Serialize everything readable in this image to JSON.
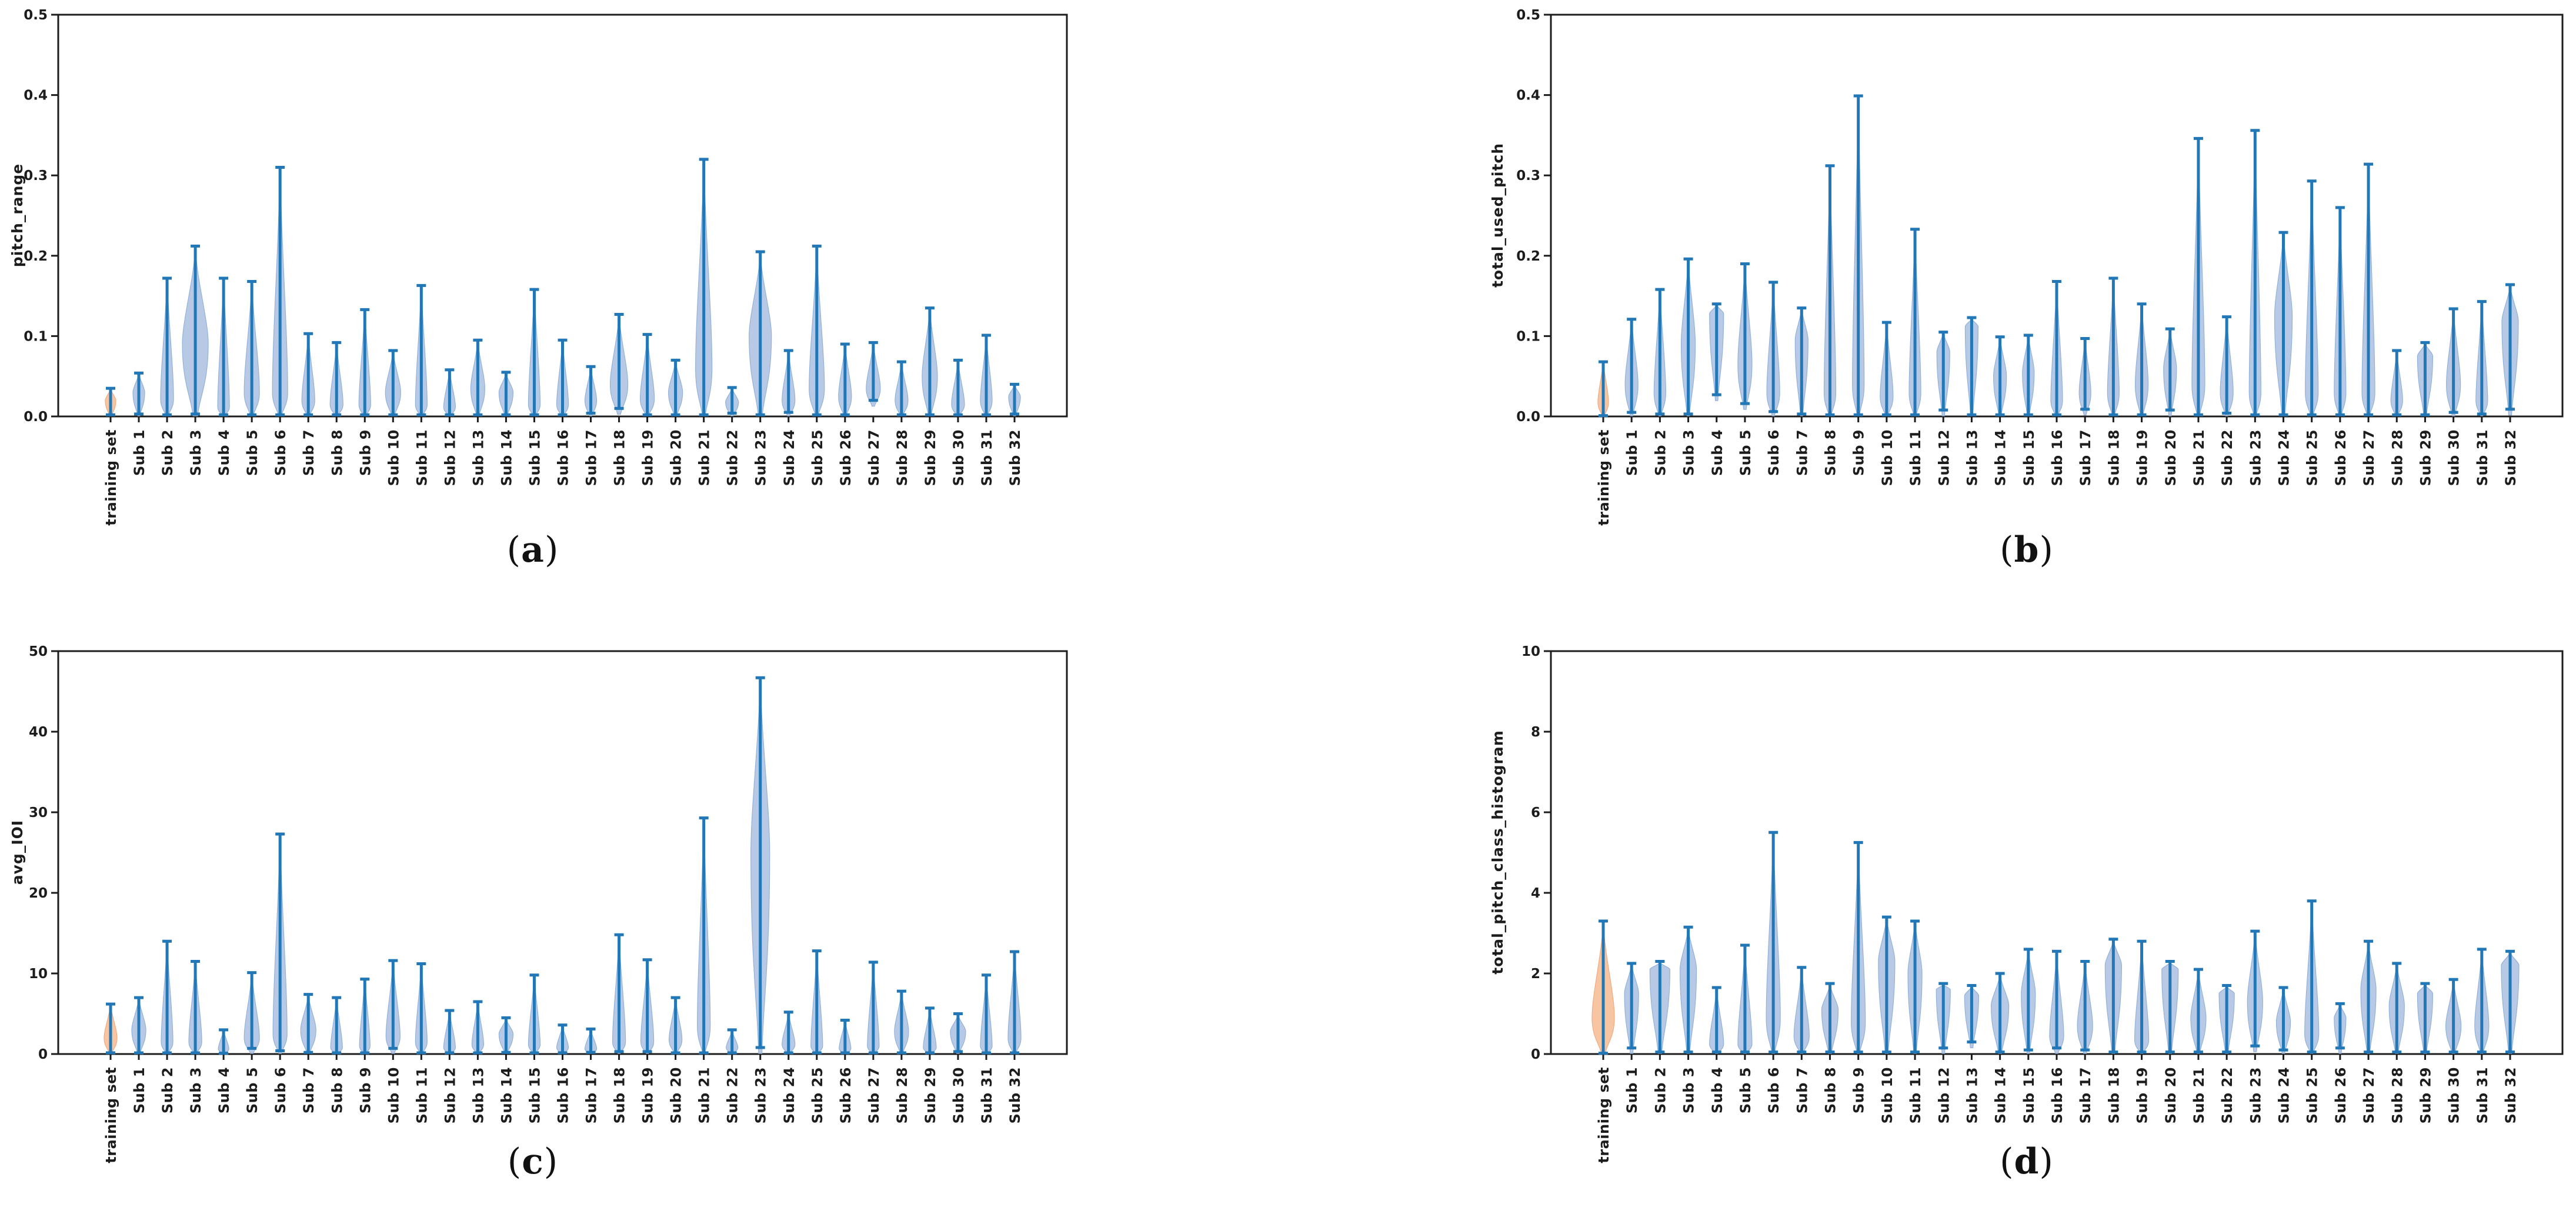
{
  "figure": {
    "background": "#ffffff",
    "captions": {
      "prefix": "(",
      "suffix": ")"
    }
  },
  "colors": {
    "whisker_blue": "#2277b6",
    "violin_blue_fill": "#b7c9e5",
    "violin_blue_edge": "#93b2d9",
    "violin_orange_fill": "#f8c5a3",
    "violin_orange_edge": "#efab81",
    "axis": "#1c1c1c",
    "text": "#1c1c1c"
  },
  "categories": [
    "training set",
    "Sub 1",
    "Sub 2",
    "Sub 3",
    "Sub 4",
    "Sub 5",
    "Sub 6",
    "Sub 7",
    "Sub 8",
    "Sub 9",
    "Sub 10",
    "Sub 11",
    "Sub 12",
    "Sub 13",
    "Sub 14",
    "Sub 15",
    "Sub 16",
    "Sub 17",
    "Sub 18",
    "Sub 19",
    "Sub 20",
    "Sub 21",
    "Sub 22",
    "Sub 23",
    "Sub 24",
    "Sub 25",
    "Sub 26",
    "Sub 27",
    "Sub 28",
    "Sub 29",
    "Sub 30",
    "Sub 31",
    "Sub 32"
  ],
  "highlight_category": "training set",
  "violin_fields": [
    "max",
    "min",
    "mode",
    "halfwidth_px"
  ],
  "chart_data": [
    {
      "panel": "a",
      "type": "violin",
      "caption": "(a)",
      "caption_letter": "a",
      "ylabel": "pitch_range",
      "xlabel": "",
      "ylim": [
        0,
        0.5
      ],
      "ytick_labels": [
        "0.0",
        "0.1",
        "0.2",
        "0.3",
        "0.4",
        "0.5"
      ],
      "grid": false,
      "legend": "none",
      "violins": [
        [
          0.035,
          0.002,
          0.02,
          9
        ],
        [
          0.054,
          0.003,
          0.03,
          10
        ],
        [
          0.172,
          0.002,
          0.022,
          11
        ],
        [
          0.212,
          0.003,
          0.09,
          22
        ],
        [
          0.172,
          0.002,
          0.012,
          10
        ],
        [
          0.168,
          0.002,
          0.03,
          13
        ],
        [
          0.31,
          0.002,
          0.03,
          13
        ],
        [
          0.103,
          0.002,
          0.02,
          11
        ],
        [
          0.092,
          0.002,
          0.015,
          11
        ],
        [
          0.133,
          0.002,
          0.015,
          10
        ],
        [
          0.082,
          0.002,
          0.03,
          13
        ],
        [
          0.163,
          0.002,
          0.015,
          10
        ],
        [
          0.058,
          0.002,
          0.012,
          10
        ],
        [
          0.095,
          0.002,
          0.035,
          12
        ],
        [
          0.055,
          0.002,
          0.03,
          12
        ],
        [
          0.158,
          0.002,
          0.015,
          10
        ],
        [
          0.095,
          0.002,
          0.015,
          10
        ],
        [
          0.062,
          0.004,
          0.02,
          10
        ],
        [
          0.127,
          0.01,
          0.04,
          15
        ],
        [
          0.102,
          0.002,
          0.022,
          12
        ],
        [
          0.07,
          0.002,
          0.03,
          12
        ],
        [
          0.32,
          0.002,
          0.06,
          14
        ],
        [
          0.036,
          0.004,
          0.018,
          11
        ],
        [
          0.205,
          0.002,
          0.1,
          19
        ],
        [
          0.082,
          0.005,
          0.02,
          11
        ],
        [
          0.212,
          0.002,
          0.035,
          13
        ],
        [
          0.09,
          0.002,
          0.025,
          11
        ],
        [
          0.092,
          0.02,
          0.035,
          12
        ],
        [
          0.068,
          0.002,
          0.02,
          11
        ],
        [
          0.135,
          0.002,
          0.05,
          13
        ],
        [
          0.07,
          0.002,
          0.015,
          11
        ],
        [
          0.101,
          0.002,
          0.02,
          10
        ],
        [
          0.04,
          0.003,
          0.025,
          10
        ]
      ]
    },
    {
      "panel": "b",
      "type": "violin",
      "caption": "(b)",
      "caption_letter": "b",
      "ylabel": "total_used_pitch",
      "xlabel": "",
      "ylim": [
        0,
        0.5
      ],
      "ytick_labels": [
        "0.0",
        "0.1",
        "0.2",
        "0.3",
        "0.4",
        "0.5"
      ],
      "grid": false,
      "legend": "none",
      "violins": [
        [
          0.068,
          0.001,
          0.018,
          9
        ],
        [
          0.121,
          0.005,
          0.04,
          11
        ],
        [
          0.158,
          0.003,
          0.03,
          10
        ],
        [
          0.196,
          0.003,
          0.09,
          12
        ],
        [
          0.14,
          0.027,
          0.128,
          12
        ],
        [
          0.19,
          0.016,
          0.065,
          12
        ],
        [
          0.167,
          0.006,
          0.03,
          11
        ],
        [
          0.135,
          0.003,
          0.095,
          11
        ],
        [
          0.312,
          0.002,
          0.03,
          10
        ],
        [
          0.399,
          0.002,
          0.04,
          10
        ],
        [
          0.117,
          0.002,
          0.025,
          11
        ],
        [
          0.233,
          0.002,
          0.03,
          10
        ],
        [
          0.105,
          0.008,
          0.08,
          11
        ],
        [
          0.123,
          0.002,
          0.112,
          11
        ],
        [
          0.099,
          0.002,
          0.05,
          11
        ],
        [
          0.101,
          0.002,
          0.055,
          10
        ],
        [
          0.168,
          0.002,
          0.02,
          10
        ],
        [
          0.097,
          0.009,
          0.03,
          10
        ],
        [
          0.172,
          0.002,
          0.03,
          10
        ],
        [
          0.14,
          0.002,
          0.04,
          11
        ],
        [
          0.109,
          0.008,
          0.06,
          11
        ],
        [
          0.346,
          0.002,
          0.04,
          11
        ],
        [
          0.124,
          0.004,
          0.03,
          11
        ],
        [
          0.356,
          0.002,
          0.03,
          10
        ],
        [
          0.229,
          0.002,
          0.125,
          15
        ],
        [
          0.293,
          0.002,
          0.03,
          11
        ],
        [
          0.26,
          0.002,
          0.03,
          10
        ],
        [
          0.314,
          0.002,
          0.03,
          11
        ],
        [
          0.082,
          0.002,
          0.02,
          10
        ],
        [
          0.092,
          0.002,
          0.075,
          13
        ],
        [
          0.134,
          0.005,
          0.04,
          12
        ],
        [
          0.143,
          0.003,
          0.02,
          10
        ],
        [
          0.164,
          0.009,
          0.118,
          14
        ]
      ]
    },
    {
      "panel": "c",
      "type": "violin",
      "caption": "(c)",
      "caption_letter": "c",
      "ylabel": "avg_IOI",
      "xlabel": "",
      "ylim": [
        0,
        50
      ],
      "ytick_labels": [
        "0",
        "10",
        "20",
        "30",
        "40",
        "50"
      ],
      "grid": false,
      "legend": "none",
      "violins": [
        [
          6.2,
          0.15,
          2.0,
          11
        ],
        [
          7.0,
          0.15,
          3.0,
          12
        ],
        [
          14.0,
          0.15,
          1.5,
          10
        ],
        [
          11.5,
          0.15,
          1.5,
          11
        ],
        [
          3.0,
          0.1,
          0.5,
          9
        ],
        [
          10.1,
          0.7,
          2.0,
          13
        ],
        [
          27.3,
          0.4,
          2.5,
          12
        ],
        [
          7.4,
          0.2,
          3.0,
          13
        ],
        [
          7.0,
          0.15,
          0.8,
          10
        ],
        [
          9.3,
          0.15,
          1.0,
          9
        ],
        [
          11.6,
          0.7,
          2.2,
          12
        ],
        [
          11.2,
          0.15,
          1.5,
          10
        ],
        [
          5.4,
          0.15,
          0.8,
          10
        ],
        [
          6.5,
          0.15,
          1.2,
          10
        ],
        [
          4.5,
          0.2,
          2.5,
          12
        ],
        [
          9.8,
          0.15,
          1.2,
          10
        ],
        [
          3.6,
          0.15,
          0.8,
          10
        ],
        [
          3.1,
          0.2,
          0.6,
          10
        ],
        [
          14.8,
          0.3,
          1.5,
          11
        ],
        [
          11.7,
          0.3,
          1.5,
          11
        ],
        [
          7.0,
          0.15,
          1.8,
          11
        ],
        [
          29.3,
          0.15,
          3.5,
          11
        ],
        [
          3.0,
          0.15,
          0.8,
          10
        ],
        [
          46.7,
          0.8,
          25.0,
          16
        ],
        [
          5.2,
          0.15,
          1.2,
          11
        ],
        [
          12.8,
          0.15,
          1.0,
          10
        ],
        [
          4.2,
          0.15,
          0.7,
          10
        ],
        [
          11.4,
          0.15,
          1.0,
          10
        ],
        [
          7.8,
          0.15,
          2.8,
          12
        ],
        [
          5.7,
          0.15,
          0.8,
          11
        ],
        [
          5.0,
          0.3,
          2.8,
          13
        ],
        [
          9.8,
          0.15,
          1.0,
          10
        ],
        [
          12.7,
          0.15,
          2.0,
          11
        ]
      ]
    },
    {
      "panel": "d",
      "type": "violin",
      "caption": "(d)",
      "caption_letter": "d",
      "ylabel": "total_pitch_class_histogram",
      "xlabel": "",
      "ylim": [
        0,
        10
      ],
      "ytick_labels": [
        "0",
        "2",
        "4",
        "6",
        "8",
        "10"
      ],
      "grid": false,
      "legend": "none",
      "violins": [
        [
          3.3,
          0.02,
          0.9,
          19
        ],
        [
          2.25,
          0.15,
          1.5,
          12
        ],
        [
          2.3,
          0.05,
          2.1,
          17
        ],
        [
          3.15,
          0.05,
          2.1,
          14
        ],
        [
          1.65,
          0.05,
          0.25,
          12
        ],
        [
          2.7,
          0.05,
          0.25,
          12
        ],
        [
          5.5,
          0.05,
          0.9,
          12
        ],
        [
          2.15,
          0.05,
          0.45,
          13
        ],
        [
          1.75,
          0.05,
          1.1,
          14
        ],
        [
          5.25,
          0.05,
          0.8,
          12
        ],
        [
          3.4,
          0.05,
          2.3,
          14
        ],
        [
          3.3,
          0.05,
          2.0,
          12
        ],
        [
          1.75,
          0.15,
          1.6,
          12
        ],
        [
          1.7,
          0.3,
          1.45,
          12
        ],
        [
          2.0,
          0.05,
          1.2,
          15
        ],
        [
          2.6,
          0.1,
          1.5,
          12
        ],
        [
          2.55,
          0.15,
          0.45,
          12
        ],
        [
          2.3,
          0.1,
          0.7,
          13
        ],
        [
          2.85,
          0.05,
          2.2,
          14
        ],
        [
          2.8,
          0.05,
          0.35,
          12
        ],
        [
          2.3,
          0.05,
          2.1,
          14
        ],
        [
          2.1,
          0.05,
          0.9,
          13
        ],
        [
          1.7,
          0.05,
          1.5,
          13
        ],
        [
          3.05,
          0.2,
          1.3,
          13
        ],
        [
          1.65,
          0.1,
          0.8,
          12
        ],
        [
          3.8,
          0.05,
          0.5,
          12
        ],
        [
          1.25,
          0.15,
          0.9,
          10
        ],
        [
          2.8,
          0.05,
          1.6,
          13
        ],
        [
          2.25,
          0.05,
          1.2,
          13
        ],
        [
          1.75,
          0.05,
          1.5,
          13
        ],
        [
          1.85,
          0.05,
          0.7,
          13
        ],
        [
          2.6,
          0.05,
          0.7,
          12
        ],
        [
          2.55,
          0.05,
          2.2,
          15
        ]
      ]
    }
  ]
}
